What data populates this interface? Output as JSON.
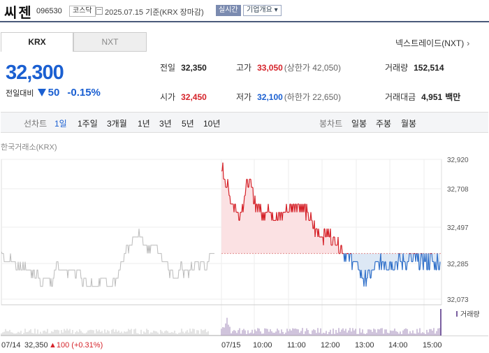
{
  "header": {
    "company": "씨젠",
    "code": "096530",
    "market": "코스닥",
    "date_basis": "2025.07.15  기준(KRX 장마감)",
    "realtime": "실시간",
    "company_info": "기업개요 ▾"
  },
  "tabs": {
    "krx": "KRX",
    "nxt": "NXT"
  },
  "nextrade_link": "넥스트레이드(NXT)",
  "quote": {
    "price": "32,300",
    "change_label": "전일대비",
    "change": "50",
    "change_pct": "-0.15%"
  },
  "stats": {
    "prev_label": "전일",
    "prev": "32,350",
    "high_label": "고가",
    "high": "33,050",
    "upper_limit": "(상한가 42,050)",
    "volume_label": "거래량",
    "volume": "152,514",
    "open_label": "시가",
    "open": "32,450",
    "low_label": "저가",
    "low": "32,100",
    "lower_limit": "(하한가 22,650)",
    "amount_label": "거래대금",
    "amount": "4,951",
    "amount_unit": "백만"
  },
  "period_bar": {
    "line_chart": "선차트",
    "periods": [
      "1일",
      "1주일",
      "3개월",
      "1년",
      "3년",
      "5년",
      "10년"
    ],
    "active": "1일",
    "candle_chart": "봉차트",
    "candles": [
      "일봉",
      "주봉",
      "월봉"
    ]
  },
  "exchange_label": "한국거래소(KRX)",
  "chart_data": {
    "type": "line",
    "y_ticks": [
      "32,920",
      "32,708",
      "32,497",
      "32,285",
      "32,073"
    ],
    "ylim": [
      32073,
      32920
    ],
    "x_ticks": [
      "07/15",
      "10:00",
      "11:00",
      "12:00",
      "13:00",
      "14:00",
      "15:00"
    ],
    "reference_price": 32350,
    "volume_legend": "거래량",
    "prev_day": {
      "date": "07/14",
      "close": "32,350",
      "change": "▲100 (+0.31%)"
    },
    "colors": {
      "up": "#d5232a",
      "down": "#2f6fc9",
      "prev_day": "#bbbbbb",
      "up_fill": "#fbe1e3",
      "down_fill": "#dde8f5"
    }
  }
}
